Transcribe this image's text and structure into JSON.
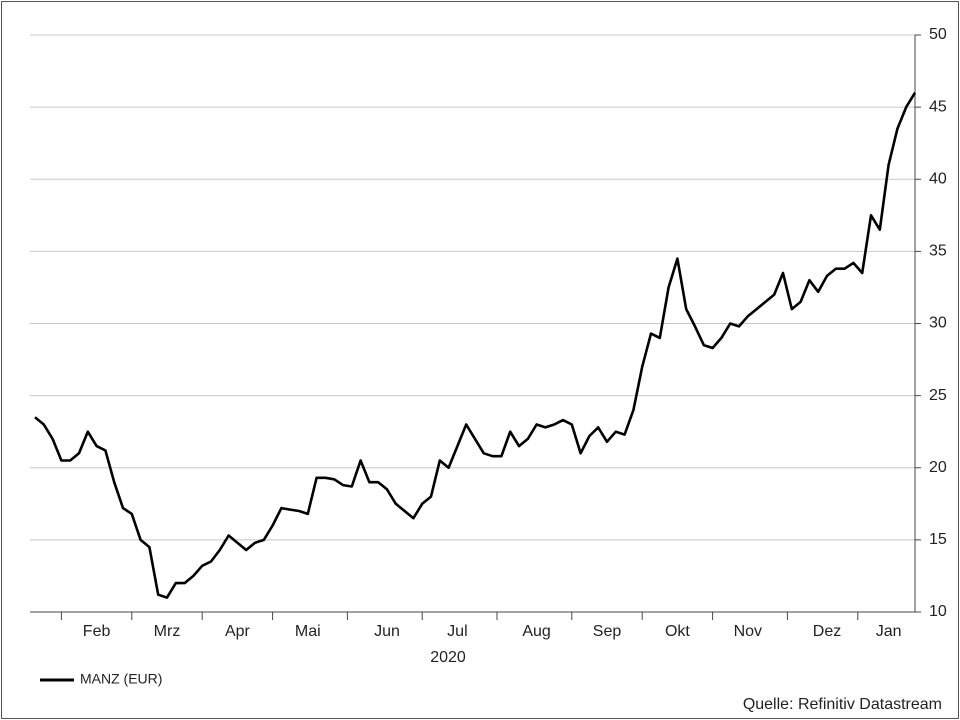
{
  "chart_data": {
    "type": "line",
    "x_label": "2020",
    "source": "Quelle: Refinitiv Datastream",
    "categories": [
      null,
      null,
      null,
      null,
      null,
      null,
      null,
      "Feb",
      null,
      null,
      null,
      null,
      null,
      null,
      null,
      "Mrz",
      null,
      null,
      null,
      null,
      null,
      null,
      null,
      "Apr",
      null,
      null,
      null,
      null,
      null,
      null,
      null,
      "Mai",
      null,
      null,
      null,
      null,
      null,
      null,
      null,
      null,
      "Jun",
      null,
      null,
      null,
      null,
      null,
      null,
      null,
      "Jul",
      null,
      null,
      null,
      null,
      null,
      null,
      null,
      null,
      "Aug",
      null,
      null,
      null,
      null,
      null,
      null,
      null,
      "Sep",
      null,
      null,
      null,
      null,
      null,
      null,
      null,
      "Okt",
      null,
      null,
      null,
      null,
      null,
      null,
      null,
      "Nov",
      null,
      null,
      null,
      null,
      null,
      null,
      null,
      null,
      "Dez",
      null,
      null,
      null,
      null,
      null,
      null,
      "Jan",
      null,
      null,
      null
    ],
    "series": [
      {
        "name": "MANZ (EUR)",
        "color": "#000000",
        "values": [
          23.5,
          23.0,
          22.0,
          20.5,
          20.5,
          21.0,
          22.5,
          21.5,
          21.2,
          19.0,
          17.2,
          16.8,
          15.0,
          14.5,
          11.2,
          11.0,
          12.0,
          12.0,
          12.5,
          13.2,
          13.5,
          14.3,
          15.3,
          14.8,
          14.3,
          14.8,
          15.0,
          16.0,
          17.2,
          17.1,
          17.0,
          16.8,
          19.3,
          19.3,
          19.2,
          18.8,
          18.7,
          20.5,
          19.0,
          19.0,
          18.5,
          17.5,
          17.0,
          16.5,
          17.5,
          18.0,
          20.5,
          20.0,
          21.5,
          23.0,
          22.0,
          21.0,
          20.8,
          20.8,
          22.5,
          21.5,
          22.0,
          23.0,
          22.8,
          23.0,
          23.3,
          23.0,
          21.0,
          22.2,
          22.8,
          21.8,
          22.5,
          22.3,
          24.0,
          27.0,
          29.3,
          29.0,
          32.5,
          34.5,
          31.0,
          29.8,
          28.5,
          28.3,
          29.0,
          30.0,
          29.8,
          30.5,
          31.0,
          31.5,
          32.0,
          33.5,
          31.0,
          31.5,
          33.0,
          32.2,
          33.3,
          33.8,
          33.8,
          34.2,
          33.5,
          37.5,
          36.5,
          41.0,
          43.5,
          45.0,
          46.0
        ]
      }
    ],
    "ylim": [
      10,
      50
    ],
    "yticks": [
      10,
      15,
      20,
      25,
      30,
      35,
      40,
      45,
      50
    ],
    "grid": true,
    "legend": "bottom-left"
  }
}
